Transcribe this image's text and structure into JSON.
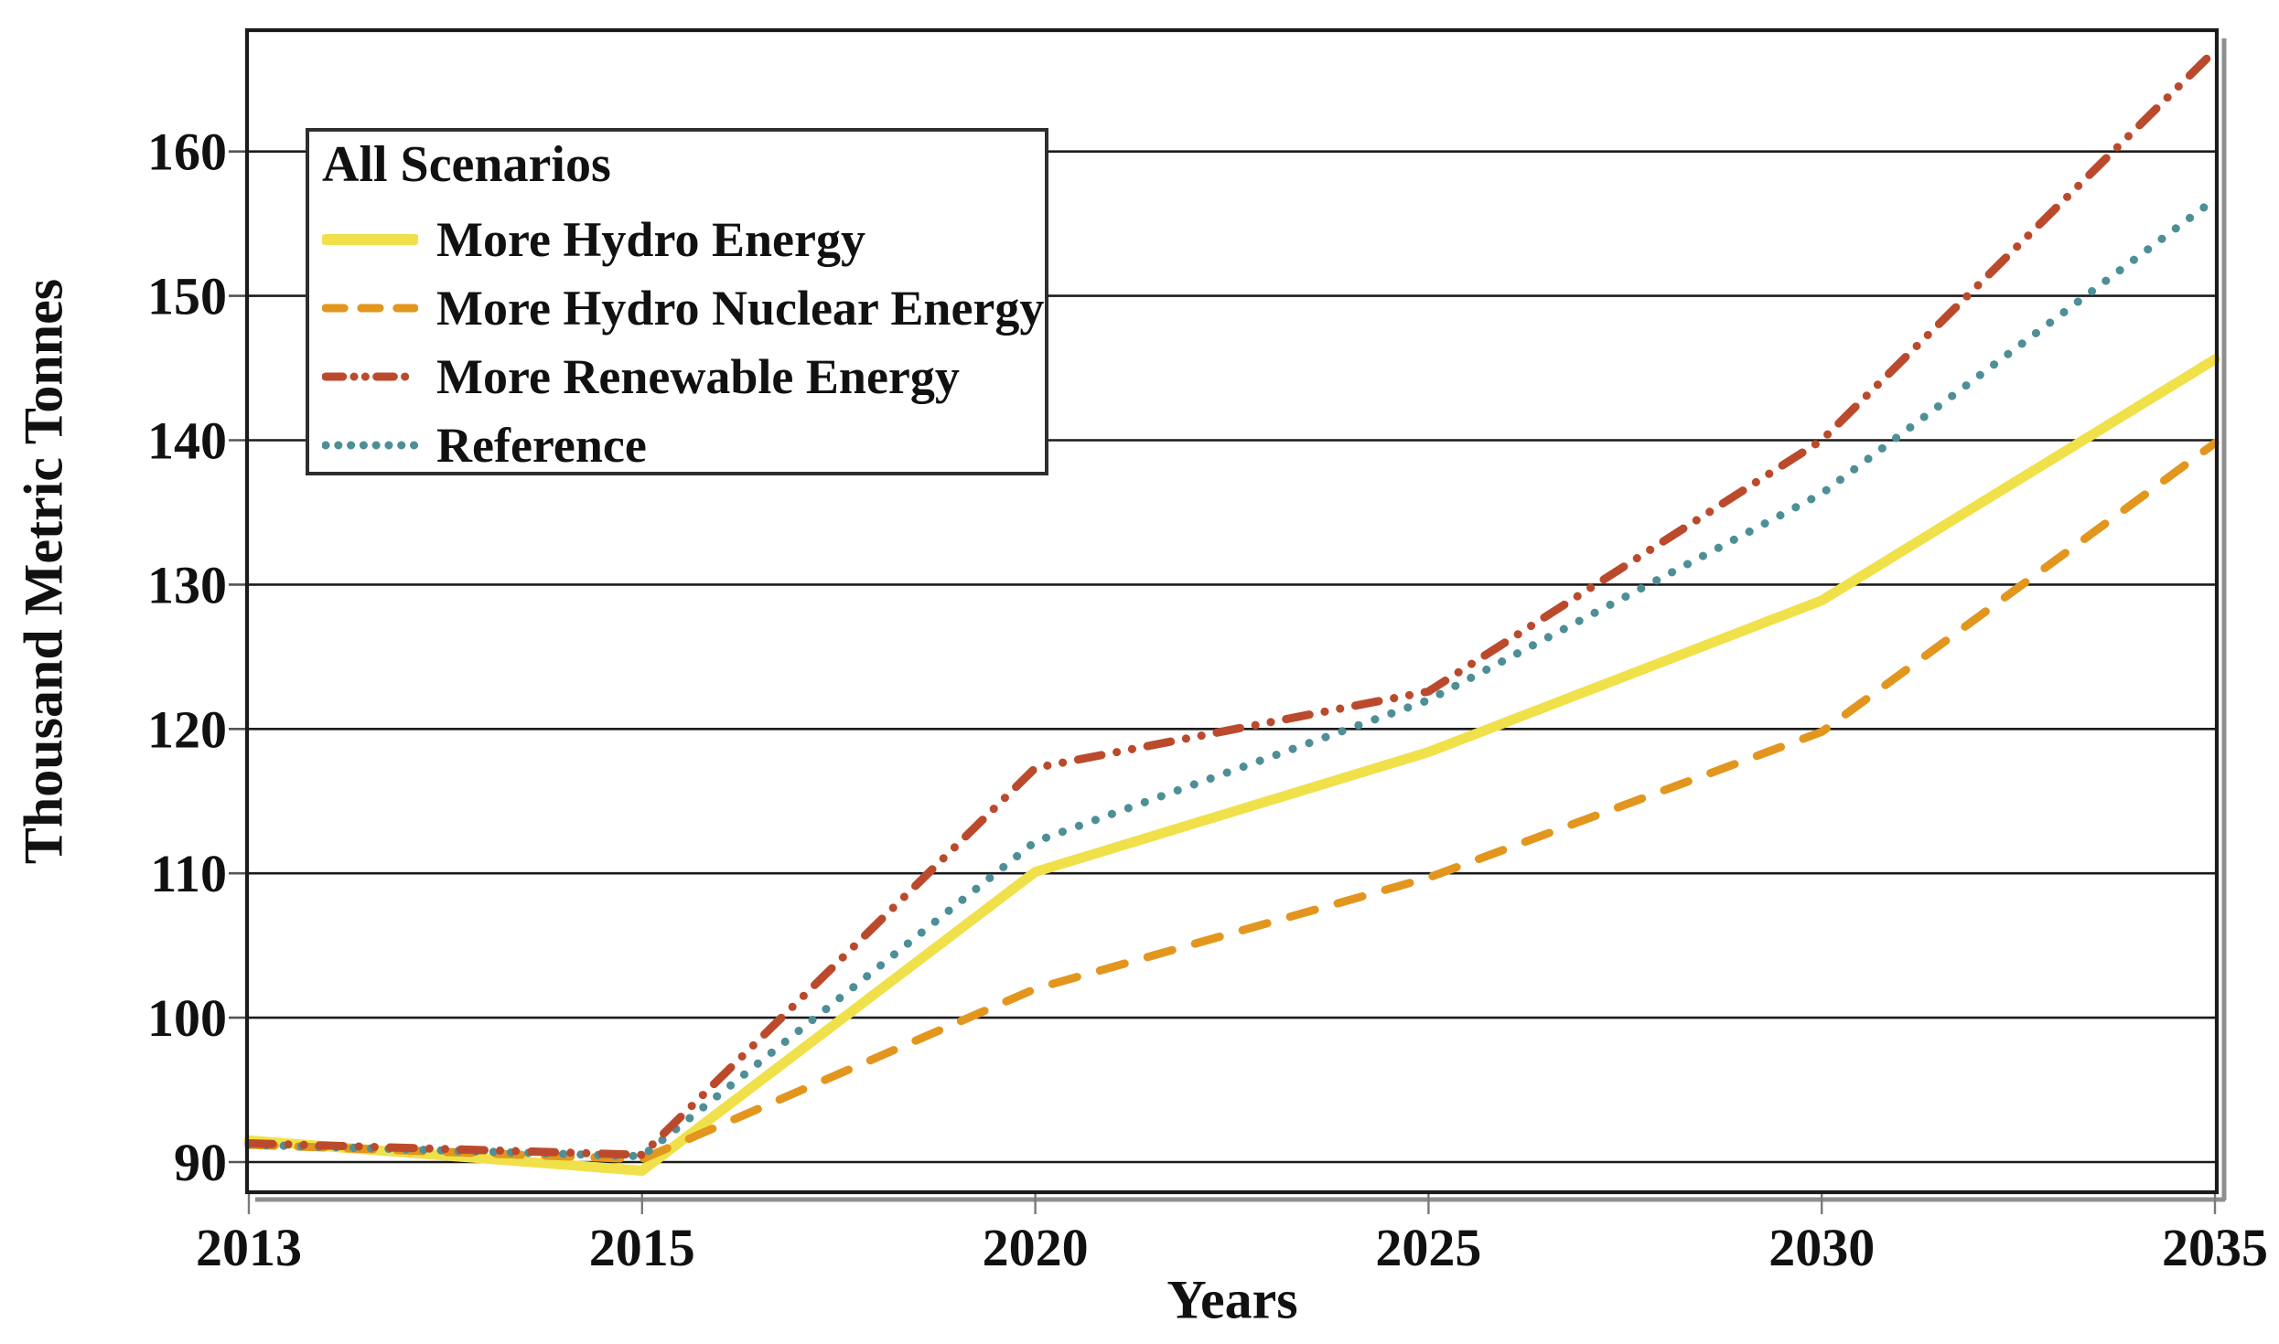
{
  "chart_data": {
    "type": "line",
    "title": "",
    "xlabel": "Years",
    "ylabel": "Thousand Metric Tonnes",
    "categories": [
      "2013",
      "2015",
      "2020",
      "2025",
      "2030",
      "2035"
    ],
    "y_ticks": [
      "90",
      "100",
      "110",
      "120",
      "130",
      "140",
      "150",
      "160"
    ],
    "ylim": [
      87.9,
      168.4
    ],
    "grid": "horizontal-only",
    "legend": {
      "title": "All Scenarios",
      "position": "top-left"
    },
    "series": [
      {
        "name": "More Hydro Energy",
        "color": "#F0E14A",
        "line_style": "solid",
        "values": [
          91.5,
          89.4,
          110.1,
          118.4,
          128.9,
          145.6
        ]
      },
      {
        "name": "More Hydro Nuclear Energy",
        "color": "#E2961E",
        "line_style": "dashed",
        "values": [
          91.2,
          90.2,
          102.0,
          109.7,
          119.8,
          139.8
        ]
      },
      {
        "name": "More Renewable Energy",
        "color": "#BB4A2D",
        "line_style": "dash-dot-dot",
        "values": [
          91.3,
          90.5,
          117.3,
          122.6,
          140.0,
          167.0
        ]
      },
      {
        "name": "Reference",
        "color": "#4E8F97",
        "line_style": "dotted",
        "values": [
          91.2,
          90.4,
          112.2,
          122.0,
          136.3,
          156.7
        ]
      }
    ]
  }
}
